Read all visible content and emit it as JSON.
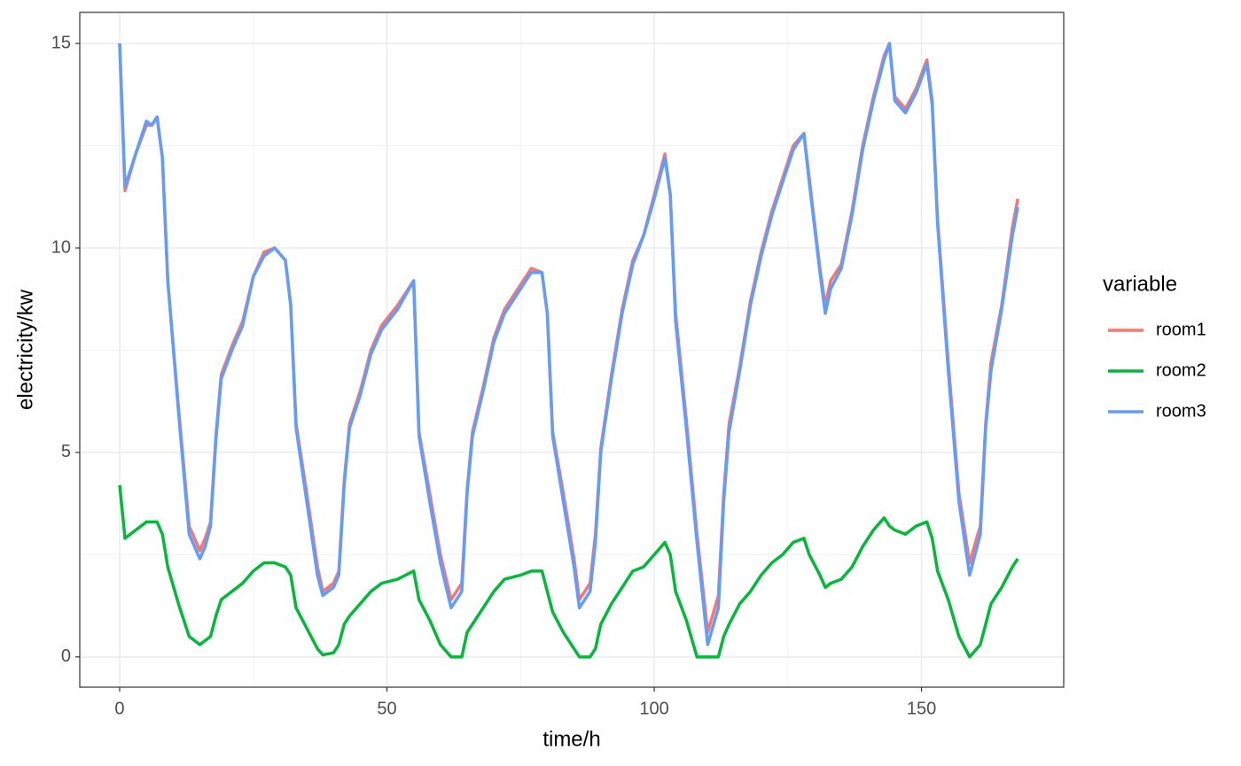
{
  "chart_data": {
    "type": "line",
    "x_label": "time/h",
    "y_label": "electricity/kw",
    "legend_title": "variable",
    "legend": "right",
    "grid": true,
    "xlim": [
      -7.46,
      176.6
    ],
    "ylim": [
      -0.74,
      15.76
    ],
    "xticks": [
      0,
      50,
      100,
      150
    ],
    "yticks": [
      0,
      5,
      10,
      15
    ],
    "x": [
      0,
      1,
      3,
      5,
      6,
      7,
      8,
      9,
      11,
      13,
      15,
      16,
      17,
      18,
      19,
      21,
      23,
      25,
      27,
      29,
      31,
      32,
      33,
      35,
      37,
      38,
      40,
      41,
      42,
      43,
      45,
      47,
      49,
      52,
      55,
      56,
      58,
      60,
      62,
      64,
      65,
      66,
      68,
      70,
      72,
      75,
      77,
      79,
      80,
      81,
      83,
      85,
      86,
      88,
      89,
      90,
      92,
      94,
      96,
      98,
      100,
      102,
      103,
      104,
      106,
      108,
      110,
      112,
      113,
      114,
      116,
      118,
      120,
      122,
      124,
      126,
      128,
      129,
      131,
      132,
      133,
      135,
      137,
      139,
      141,
      143,
      144,
      145,
      147,
      149,
      151,
      152,
      153,
      155,
      157,
      159,
      161,
      162,
      163,
      165,
      167,
      168
    ],
    "series": [
      {
        "name": "room1",
        "color": "#f8766d",
        "values": [
          15,
          11.4,
          12.3,
          13.0,
          13.0,
          13.2,
          12.2,
          9.2,
          6.1,
          3.2,
          2.6,
          2.9,
          3.3,
          5.4,
          6.9,
          7.6,
          8.2,
          9.3,
          9.9,
          10.0,
          9.7,
          8.6,
          5.7,
          4.0,
          2.2,
          1.6,
          1.8,
          2.1,
          4.3,
          5.7,
          6.5,
          7.5,
          8.1,
          8.6,
          9.2,
          5.5,
          4.0,
          2.5,
          1.4,
          1.8,
          4.1,
          5.5,
          6.6,
          7.8,
          8.5,
          9.1,
          9.5,
          9.4,
          8.4,
          5.5,
          4.0,
          2.4,
          1.4,
          1.8,
          3.0,
          5.1,
          6.9,
          8.5,
          9.7,
          10.3,
          11.3,
          12.3,
          11.3,
          8.4,
          5.8,
          3.0,
          0.6,
          1.5,
          4.0,
          5.7,
          7.1,
          8.7,
          9.9,
          10.9,
          11.7,
          12.5,
          12.8,
          11.7,
          9.5,
          8.6,
          9.2,
          9.6,
          10.9,
          12.5,
          13.7,
          14.7,
          15.0,
          13.7,
          13.4,
          13.9,
          14.6,
          13.6,
          10.7,
          7.2,
          4.0,
          2.3,
          3.2,
          5.7,
          7.2,
          8.6,
          10.5,
          11.2
        ]
      },
      {
        "name": "room2",
        "color": "#00ba38",
        "values": [
          4.2,
          2.9,
          3.1,
          3.3,
          3.3,
          3.3,
          3.0,
          2.2,
          1.3,
          0.5,
          0.3,
          0.4,
          0.5,
          1.0,
          1.4,
          1.6,
          1.8,
          2.1,
          2.3,
          2.3,
          2.2,
          2.0,
          1.2,
          0.7,
          0.2,
          0.05,
          0.1,
          0.3,
          0.8,
          1.0,
          1.3,
          1.6,
          1.8,
          1.9,
          2.1,
          1.4,
          0.9,
          0.3,
          0,
          0,
          0.6,
          0.8,
          1.2,
          1.6,
          1.9,
          2.0,
          2.1,
          2.1,
          1.6,
          1.1,
          0.6,
          0.2,
          0,
          0,
          0.2,
          0.8,
          1.3,
          1.7,
          2.1,
          2.2,
          2.5,
          2.8,
          2.5,
          1.6,
          0.9,
          0,
          0,
          0,
          0.5,
          0.8,
          1.3,
          1.6,
          2.0,
          2.3,
          2.5,
          2.8,
          2.9,
          2.5,
          2.0,
          1.7,
          1.8,
          1.9,
          2.2,
          2.7,
          3.1,
          3.4,
          3.2,
          3.1,
          3.0,
          3.2,
          3.3,
          2.9,
          2.1,
          1.4,
          0.5,
          0,
          0.3,
          0.8,
          1.3,
          1.7,
          2.2,
          2.4
        ]
      },
      {
        "name": "room3",
        "color": "#619cff",
        "values": [
          15,
          11.5,
          12.3,
          13.1,
          13.0,
          13.2,
          12.2,
          9.2,
          6.0,
          3.0,
          2.4,
          2.7,
          3.2,
          5.3,
          6.8,
          7.5,
          8.1,
          9.3,
          9.8,
          10.0,
          9.7,
          8.6,
          5.6,
          3.8,
          2.0,
          1.5,
          1.7,
          2.0,
          4.2,
          5.6,
          6.4,
          7.4,
          8.0,
          8.5,
          9.2,
          5.4,
          3.8,
          2.3,
          1.2,
          1.6,
          4.0,
          5.4,
          6.5,
          7.7,
          8.4,
          9.0,
          9.4,
          9.4,
          8.4,
          5.4,
          3.8,
          2.2,
          1.2,
          1.6,
          2.8,
          5.0,
          6.8,
          8.4,
          9.6,
          10.3,
          11.2,
          12.2,
          11.3,
          8.2,
          5.6,
          2.8,
          0.3,
          1.2,
          3.8,
          5.5,
          7.0,
          8.6,
          9.8,
          10.8,
          11.6,
          12.4,
          12.8,
          11.6,
          9.4,
          8.4,
          9.0,
          9.5,
          10.8,
          12.4,
          13.6,
          14.6,
          15.0,
          13.6,
          13.3,
          13.8,
          14.5,
          13.5,
          10.6,
          7.0,
          3.8,
          2.0,
          3.0,
          5.6,
          7.0,
          8.5,
          10.3,
          11.0
        ]
      }
    ]
  }
}
